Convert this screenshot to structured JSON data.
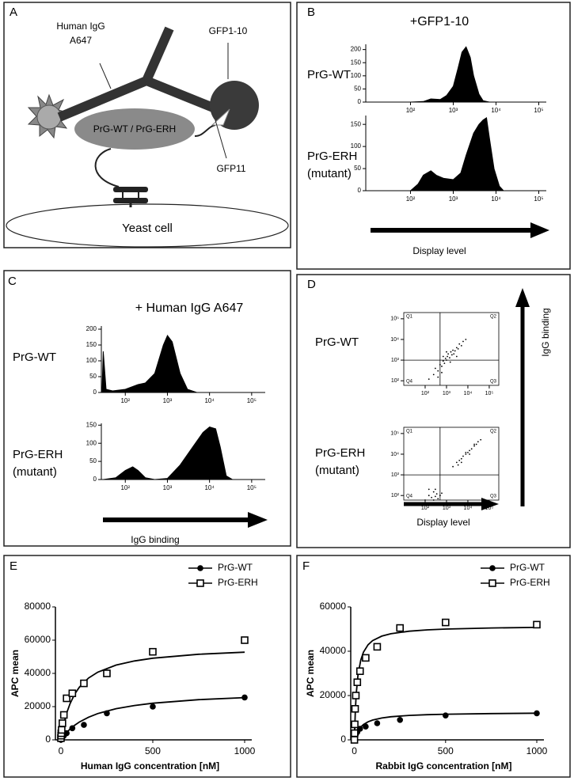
{
  "panels": {
    "a": {
      "label": "A",
      "antibody": [
        "Human IgG",
        "A647"
      ],
      "gfp1_10": "GFP1-10",
      "protein": "PrG-WT / PrG-ERH",
      "gfp11": "GFP11",
      "cell": "Yeast cell"
    },
    "b": {
      "label": "B",
      "title": "+GFP1-10",
      "rows": [
        [
          "PrG-WT"
        ],
        [
          "PrG-ERH",
          "(mutant)"
        ]
      ],
      "arrow": "Display level"
    },
    "c": {
      "label": "C",
      "title": "+ Human IgG A647",
      "rows": [
        [
          "PrG-WT"
        ],
        [
          "PrG-ERH",
          "(mutant)"
        ]
      ],
      "arrow": "IgG binding"
    },
    "d": {
      "label": "D",
      "rows": [
        [
          "PrG-WT"
        ],
        [
          "PrG-ERH",
          "(mutant)"
        ]
      ],
      "x_arrow": "Display level",
      "y_arrow": "IgG binding"
    },
    "e": {
      "label": "E"
    },
    "f": {
      "label": "F"
    }
  },
  "chart_data": [
    {
      "type": "area",
      "log_x": true,
      "color": "#000000",
      "x": [
        100,
        200,
        300,
        500,
        700,
        1000,
        1300,
        1600,
        2000,
        2500,
        3000,
        4000,
        5000,
        7000
      ],
      "values": [
        0,
        2,
        12,
        10,
        25,
        60,
        130,
        190,
        210,
        170,
        100,
        30,
        5,
        0
      ],
      "xlim": [
        9,
        150000
      ],
      "xticks": [
        {
          "value": 100,
          "label": "10²"
        },
        {
          "value": 1000,
          "label": "10³"
        },
        {
          "value": 10000,
          "label": "10⁴"
        },
        {
          "value": 100000,
          "label": "10⁵"
        }
      ],
      "ylim": [
        0,
        220
      ],
      "yticks": [
        0,
        50,
        100,
        150,
        200
      ]
    },
    {
      "type": "area",
      "log_x": true,
      "color": "#000000",
      "x": [
        100,
        150,
        200,
        300,
        400,
        600,
        1000,
        1500,
        2000,
        3000,
        4000,
        5000,
        6000,
        7000,
        9000,
        12000,
        15000
      ],
      "values": [
        0,
        15,
        35,
        45,
        35,
        28,
        25,
        40,
        80,
        130,
        150,
        160,
        165,
        120,
        50,
        10,
        0
      ],
      "xlim": [
        9,
        150000
      ],
      "xticks": [
        {
          "value": 100,
          "label": "10²"
        },
        {
          "value": 1000,
          "label": "10³"
        },
        {
          "value": 10000,
          "label": "10⁴"
        },
        {
          "value": 100000,
          "label": "10⁵"
        }
      ],
      "ylim": [
        0,
        170
      ],
      "yticks": [
        0,
        50,
        100,
        150
      ]
    },
    {
      "type": "area",
      "log_x": true,
      "color": "#000000",
      "x": [
        28,
        30,
        35,
        50,
        100,
        200,
        300,
        500,
        800,
        1000,
        1300,
        2000,
        3000,
        5000
      ],
      "values": [
        0,
        130,
        10,
        5,
        10,
        25,
        30,
        60,
        150,
        180,
        160,
        60,
        10,
        0
      ],
      "xlim": [
        27,
        210000
      ],
      "xticks": [
        {
          "value": 100,
          "label": "10²"
        },
        {
          "value": 1000,
          "label": "10³"
        },
        {
          "value": 10000,
          "label": "10⁴"
        },
        {
          "value": 100000,
          "label": "10⁵"
        }
      ],
      "ylim": [
        0,
        210
      ],
      "yticks": [
        0,
        50,
        100,
        150,
        200
      ]
    },
    {
      "type": "area",
      "log_x": true,
      "color": "#000000",
      "x": [
        30,
        60,
        100,
        150,
        200,
        300,
        500,
        1000,
        2000,
        4000,
        7000,
        10000,
        14000,
        18000,
        25000,
        35000
      ],
      "values": [
        0,
        5,
        25,
        35,
        25,
        5,
        0,
        3,
        40,
        90,
        130,
        145,
        140,
        90,
        10,
        0
      ],
      "xlim": [
        27,
        210000
      ],
      "xticks": [
        {
          "value": 100,
          "label": "10²"
        },
        {
          "value": 1000,
          "label": "10³"
        },
        {
          "value": 10000,
          "label": "10⁴"
        },
        {
          "value": 100000,
          "label": "10⁵"
        }
      ],
      "ylim": [
        0,
        155
      ],
      "yticks": [
        0,
        50,
        100,
        150
      ]
    },
    {
      "type": "scatter",
      "log_x": true,
      "log_y": true,
      "color": "#000000",
      "x": [
        150,
        250,
        300,
        400,
        500,
        600,
        700,
        800,
        900,
        1000,
        1100,
        1200,
        1400,
        1600,
        1800,
        2000,
        2500,
        3000,
        3500,
        4000,
        5000,
        6000,
        8000,
        700,
        1500,
        2200,
        400,
        1000,
        3000,
        600
      ],
      "values": [
        120,
        200,
        400,
        300,
        600,
        500,
        900,
        700,
        1200,
        1000,
        1500,
        2000,
        1300,
        2500,
        1800,
        3000,
        2800,
        4000,
        3500,
        6000,
        5000,
        8000,
        10000,
        1500,
        800,
        2000,
        150,
        2500,
        1500,
        250
      ],
      "xlim": [
        10,
        280000
      ],
      "xticks": [
        {
          "value": 100,
          "label": "10²"
        },
        {
          "value": 1000,
          "label": "10³"
        },
        {
          "value": 10000,
          "label": "10⁴"
        },
        {
          "value": 100000,
          "label": "10⁵"
        }
      ],
      "ylim": [
        60,
        200000
      ],
      "yticks": [
        {
          "value": 100,
          "label": "10²"
        },
        {
          "value": 1000,
          "label": "10³"
        },
        {
          "value": 10000,
          "label": "10⁴"
        },
        {
          "value": 100000,
          "label": "10⁵"
        }
      ],
      "quadrant_x": 500,
      "quadrant_y": 1000,
      "quadrant_labels": [
        "Q1",
        "Q2",
        "Q3",
        "Q4"
      ]
    },
    {
      "type": "scatter",
      "log_x": true,
      "log_y": true,
      "color": "#000000",
      "x": [
        100,
        150,
        200,
        250,
        300,
        350,
        400,
        500,
        600,
        150,
        300,
        250,
        2000,
        3000,
        4000,
        5000,
        6000,
        8000,
        10000,
        12000,
        15000,
        20000,
        25000,
        30000,
        40000,
        5000,
        8000,
        12000,
        20000,
        3500
      ],
      "values": [
        60,
        100,
        80,
        150,
        90,
        120,
        70,
        100,
        130,
        200,
        200,
        60,
        2500,
        4000,
        5000,
        6000,
        8000,
        10000,
        12000,
        15000,
        18000,
        25000,
        30000,
        40000,
        50000,
        4000,
        12000,
        10000,
        30000,
        3000
      ],
      "xlim": [
        10,
        280000
      ],
      "xticks": [
        {
          "value": 100,
          "label": "10²"
        },
        {
          "value": 1000,
          "label": "10³"
        },
        {
          "value": 10000,
          "label": "10⁴"
        },
        {
          "value": 100000,
          "label": "10⁵"
        }
      ],
      "ylim": [
        60,
        200000
      ],
      "yticks": [
        {
          "value": 100,
          "label": "10²"
        },
        {
          "value": 1000,
          "label": "10³"
        },
        {
          "value": 10000,
          "label": "10⁴"
        },
        {
          "value": 100000,
          "label": "10⁵"
        }
      ],
      "quadrant_x": 500,
      "quadrant_y": 1000,
      "quadrant_labels": [
        "Q1",
        "Q2",
        "Q3",
        "Q4"
      ]
    },
    {
      "type": "line",
      "x_label": "Human IgG concentration [nM]",
      "y_label": "APC mean",
      "x": [
        0,
        1,
        2,
        4,
        8,
        16,
        31,
        62,
        125,
        250,
        500,
        1000
      ],
      "fit_x": [
        0,
        5,
        10,
        20,
        35,
        50,
        75,
        100,
        150,
        200,
        300,
        400,
        500,
        750,
        1000
      ],
      "series": [
        {
          "name": "PrG-WT",
          "color": "#000000",
          "marker": "circle",
          "values": [
            0,
            300,
            500,
            1000,
            1500,
            2500,
            4000,
            7000,
            9000,
            16000,
            20000,
            25500
          ],
          "fit_values": [
            0,
            811,
            1579,
            3000,
            4880,
            6520,
            8820,
            10710,
            13640,
            15790,
            18750,
            20690,
            22060,
            24190,
            25420
          ]
        },
        {
          "name": "PrG-ERH",
          "color": "#000000",
          "marker": "open-square",
          "values": [
            1000,
            2500,
            4000,
            6000,
            10000,
            15000,
            25000,
            28000,
            34000,
            40000,
            53000,
            60000
          ],
          "fit_values": [
            0,
            3350,
            6330,
            11400,
            17350,
            21920,
            27580,
            31670,
            37170,
            40710,
            45000,
            47500,
            49140,
            51510,
            52780
          ]
        }
      ],
      "xlim": [
        -30,
        1000
      ],
      "xticks": [
        0,
        500,
        1000
      ],
      "ylim": [
        0,
        80000
      ],
      "yticks": [
        0,
        20000,
        40000,
        60000,
        80000
      ]
    },
    {
      "type": "line",
      "x_label": "Rabbit IgG concentration [nM]",
      "y_label": "APC mean",
      "x": [
        0,
        1,
        2,
        4,
        8,
        16,
        31,
        62,
        125,
        250,
        500,
        1000
      ],
      "fit_x": [
        0,
        5,
        10,
        20,
        35,
        50,
        75,
        100,
        150,
        200,
        300,
        400,
        500,
        750,
        1000
      ],
      "series": [
        {
          "name": "PrG-WT",
          "color": "#000000",
          "marker": "circle",
          "values": [
            0,
            300,
            800,
            1500,
            2500,
            3500,
            5000,
            6000,
            7500,
            9000,
            11000,
            12000
          ],
          "fit_values": [
            0,
            1390,
            2500,
            4170,
            5830,
            6940,
            8150,
            8930,
            9870,
            10420,
            11030,
            11360,
            11570,
            11870,
            12020
          ]
        },
        {
          "name": "PrG-ERH",
          "color": "#000000",
          "marker": "open-square",
          "values": [
            0,
            3000,
            7000,
            14000,
            20000,
            26000,
            31000,
            37000,
            42000,
            50500,
            53000,
            52000
          ],
          "fit_values": [
            0,
            12880,
            20600,
            29430,
            36050,
            39620,
            42920,
            44780,
            46820,
            47910,
            49050,
            49640,
            50000,
            50490,
            50740
          ]
        }
      ],
      "xlim": [
        -20,
        1000
      ],
      "xticks": [
        0,
        500,
        1000
      ],
      "ylim": [
        0,
        60000
      ],
      "yticks": [
        0,
        20000,
        40000,
        60000
      ]
    }
  ]
}
